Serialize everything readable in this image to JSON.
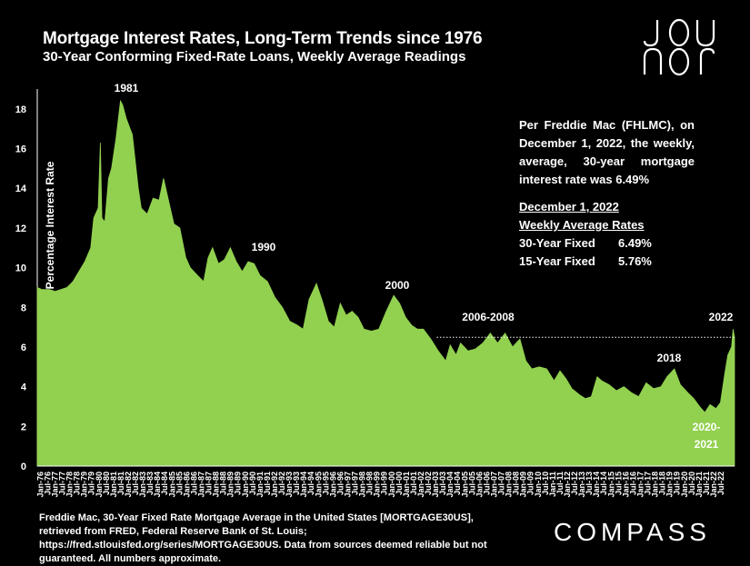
{
  "title": "Mortgage Interest Rates, Long-Term Trends since 1976",
  "subtitle": "30-Year Conforming Fixed-Rate Loans, Weekly Average Readings",
  "logo_text": "JOU JOU",
  "note": {
    "text": "Per Freddie Mac (FHLMC), on December 1, 2022, the weekly, average, 30-year mortgage interest rate was 6.49%",
    "heading_date": "December 1, 2022",
    "heading_rates": "Weekly Average Rates",
    "rows": [
      {
        "label": "30-Year Fixed",
        "value": "6.49%"
      },
      {
        "label": "15-Year Fixed",
        "value": "5.76%"
      }
    ]
  },
  "footer": "Freddie Mac, 30-Year Fixed Rate Mortgage Average in the United States [MORTGAGE30US], retrieved from FRED, Federal Reserve Bank of St. Louis; https://fred.stlouisfed.org/series/MORTGAGE30US. Data from sources deemed reliable but not guaranteed. All numbers approximate.",
  "brand": "COMPASS",
  "colors": {
    "fill": "#92d050",
    "background": "#000000",
    "text": "#ffffff"
  },
  "chart_data": {
    "type": "area",
    "xlabel": "",
    "ylabel": "Percentage Interest Rate",
    "ylim": [
      0,
      19
    ],
    "yticks": [
      0,
      2,
      4,
      6,
      8,
      10,
      12,
      14,
      16,
      18
    ],
    "xlim": [
      1976.0,
      2022.95
    ],
    "grid": false,
    "xtick_labels": [
      "Jan-76",
      "Jul-76",
      "Jan-77",
      "Jul-77",
      "Jan-78",
      "Jul-78",
      "Jan-79",
      "Jul-79",
      "Jan-80",
      "Jul-80",
      "Jan-81",
      "Jul-81",
      "Jan-82",
      "Jul-82",
      "Jan-83",
      "Jul-83",
      "Jan-84",
      "Jul-84",
      "Jan-85",
      "Jul-85",
      "Jan-86",
      "Jul-86",
      "Jan-87",
      "Jul-87",
      "Jan-88",
      "Jul-88",
      "Jan-89",
      "Jul-89",
      "Jan-90",
      "Jul-90",
      "Jan-91",
      "Jul-91",
      "Jan-92",
      "Jul-92",
      "Jan-93",
      "Jul-93",
      "Jan-94",
      "Jul-94",
      "Jan-95",
      "Jul-95",
      "Jan-96",
      "Jul-96",
      "Jan-97",
      "Jul-97",
      "Jan-98",
      "Jul-98",
      "Jan-99",
      "Jul-99",
      "Jan-00",
      "Jul-00",
      "Jan-01",
      "Jul-01",
      "Jan-02",
      "Jul-02",
      "Jan-03",
      "Jul-03",
      "Jan-04",
      "Jul-04",
      "Jan-05",
      "Jul-05",
      "Jan-06",
      "Jul-06",
      "Jan-07",
      "Jul-07",
      "Jan-08",
      "Jul-08",
      "Jan-09",
      "Jul-09",
      "Jan-10",
      "Jul-10",
      "Jan-11",
      "Jul-11",
      "Jan-12",
      "Jul-12",
      "Jan-13",
      "Jul-13",
      "Jan-14",
      "Jul-14",
      "Jan-15",
      "Jul-15",
      "Jan-16",
      "Jul-16",
      "Jan-17",
      "Jul-17",
      "Jan-18",
      "Jul-18",
      "Jan-19",
      "Jul-19",
      "Jan-20",
      "Jul-20",
      "Jan-21",
      "Jul-21",
      "Jan-22",
      "Jul-22"
    ],
    "x": [
      1976.0,
      1976.3,
      1976.8,
      1977.2,
      1977.6,
      1978.0,
      1978.4,
      1978.8,
      1979.2,
      1979.6,
      1979.8,
      1980.1,
      1980.25,
      1980.35,
      1980.55,
      1980.8,
      1981.0,
      1981.3,
      1981.6,
      1981.75,
      1982.0,
      1982.4,
      1982.8,
      1983.0,
      1983.4,
      1983.8,
      1984.2,
      1984.5,
      1984.8,
      1985.2,
      1985.6,
      1986.0,
      1986.3,
      1986.8,
      1987.2,
      1987.5,
      1987.8,
      1988.2,
      1988.6,
      1989.0,
      1989.4,
      1989.8,
      1990.2,
      1990.6,
      1991.0,
      1991.5,
      1992.0,
      1992.5,
      1993.0,
      1993.5,
      1993.9,
      1994.3,
      1994.8,
      1995.2,
      1995.6,
      1996.0,
      1996.4,
      1996.8,
      1997.2,
      1997.6,
      1998.0,
      1998.5,
      1999.0,
      1999.5,
      2000.0,
      2000.4,
      2000.8,
      2001.2,
      2001.6,
      2002.0,
      2002.5,
      2003.0,
      2003.5,
      2003.8,
      2004.2,
      2004.5,
      2005.0,
      2005.5,
      2006.0,
      2006.5,
      2007.0,
      2007.5,
      2008.0,
      2008.5,
      2008.9,
      2009.3,
      2009.8,
      2010.3,
      2010.8,
      2011.2,
      2011.6,
      2012.0,
      2012.5,
      2012.9,
      2013.3,
      2013.7,
      2014.0,
      2014.5,
      2015.0,
      2015.5,
      2016.0,
      2016.5,
      2017.0,
      2017.5,
      2018.0,
      2018.4,
      2018.9,
      2019.3,
      2019.8,
      2020.2,
      2020.6,
      2020.95,
      2021.3,
      2021.7,
      2022.0,
      2022.3,
      2022.5,
      2022.75,
      2022.85,
      2022.95
    ],
    "values": [
      9.0,
      8.9,
      8.9,
      8.8,
      8.9,
      9.0,
      9.3,
      9.8,
      10.3,
      11.0,
      12.5,
      13.0,
      16.3,
      12.5,
      12.3,
      14.5,
      15.0,
      16.5,
      18.4,
      18.2,
      17.5,
      16.7,
      14.0,
      13.0,
      12.7,
      13.5,
      13.4,
      14.5,
      13.5,
      12.2,
      12.0,
      10.5,
      10.0,
      9.6,
      9.3,
      10.5,
      11.0,
      10.2,
      10.4,
      11.0,
      10.3,
      9.8,
      10.3,
      10.2,
      9.6,
      9.3,
      8.5,
      8.0,
      7.3,
      7.1,
      6.9,
      8.4,
      9.2,
      8.3,
      7.3,
      7.0,
      8.2,
      7.6,
      7.8,
      7.5,
      6.9,
      6.8,
      6.9,
      7.8,
      8.6,
      8.2,
      7.5,
      7.1,
      6.9,
      6.9,
      6.4,
      5.8,
      5.3,
      6.1,
      5.6,
      6.2,
      5.8,
      5.9,
      6.2,
      6.7,
      6.2,
      6.7,
      6.0,
      6.4,
      5.3,
      4.9,
      5.0,
      4.9,
      4.3,
      4.8,
      4.4,
      3.9,
      3.6,
      3.4,
      3.5,
      4.5,
      4.3,
      4.1,
      3.8,
      4.0,
      3.7,
      3.5,
      4.2,
      3.9,
      4.0,
      4.5,
      4.9,
      4.1,
      3.7,
      3.4,
      3.0,
      2.7,
      3.1,
      2.9,
      3.2,
      4.7,
      5.6,
      6.0,
      6.9,
      6.49
    ],
    "reference_line": {
      "value": 6.49,
      "style": "dotted"
    },
    "annotations": [
      {
        "text": "1981",
        "x": 1981.6,
        "y": 18.4
      },
      {
        "text": "1990",
        "x": 1990.6,
        "y": 10.2
      },
      {
        "text": "2000",
        "x": 2000.0,
        "y": 8.6
      },
      {
        "text": "2006-2008",
        "x": 2007.0,
        "y": 6.7
      },
      {
        "text": "2018",
        "x": 2018.6,
        "y": 5.0
      },
      {
        "text": "2022",
        "x": 2022.6,
        "y": 6.9
      },
      {
        "text": "2020-",
        "x": 2020.8,
        "y": 2.7
      },
      {
        "text": "2021",
        "x": 2020.8,
        "y": 2.7
      }
    ]
  }
}
